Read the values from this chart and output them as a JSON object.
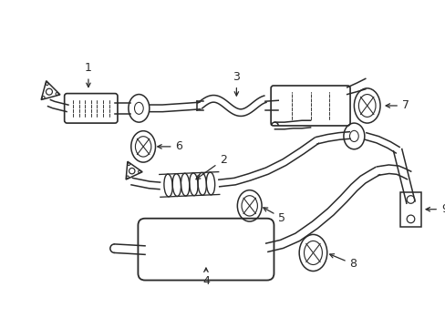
{
  "bg_color": "#ffffff",
  "line_color": "#2a2a2a",
  "lw": 1.1,
  "fig_w": 4.89,
  "fig_h": 3.6,
  "dpi": 100
}
